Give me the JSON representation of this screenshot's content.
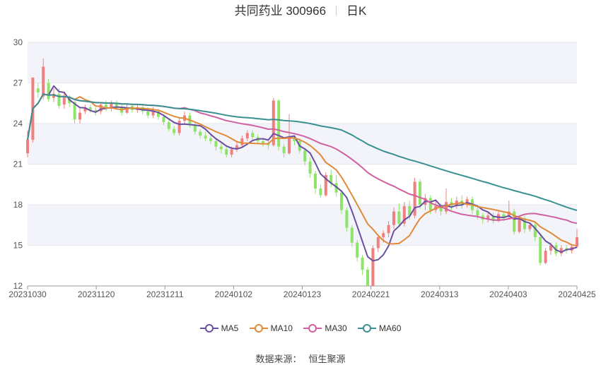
{
  "header": {
    "stock": "共同药业 300966",
    "period": "日K"
  },
  "source": {
    "label": "数据来源：",
    "value": "恒生聚源"
  },
  "colors": {
    "up": "#f08080",
    "down": "#8fe36a",
    "ma5": "#6a4fa0",
    "ma10": "#e08a3a",
    "ma30": "#d060a0",
    "ma60": "#3a9090",
    "band": "#f3f4fa",
    "grid": "#e4e6ee"
  },
  "chart_data": {
    "type": "candlestick",
    "ylim": [
      12,
      30
    ],
    "yticks": [
      "30",
      "27",
      "24",
      "21",
      "18",
      "15",
      "12"
    ],
    "xticks": [
      "20231030",
      "20231120",
      "20231211",
      "20240102",
      "20240123",
      "20240221",
      "20240313",
      "20240403",
      "20240425"
    ],
    "legend": [
      "MA5",
      "MA10",
      "MA30",
      "MA60"
    ],
    "candles": [
      [
        21.8,
        22.8,
        23.5,
        21.5
      ],
      [
        22.8,
        27.4,
        27.4,
        22.6
      ],
      [
        26.6,
        26.3,
        27.0,
        25.9
      ],
      [
        26.0,
        28.2,
        28.8,
        25.8
      ],
      [
        27.0,
        25.8,
        27.3,
        25.6
      ],
      [
        25.9,
        26.2,
        26.6,
        25.6
      ],
      [
        26.2,
        25.3,
        26.6,
        25.1
      ],
      [
        25.4,
        26.0,
        26.3,
        25.1
      ],
      [
        25.9,
        25.5,
        26.1,
        25.2
      ],
      [
        25.6,
        24.3,
        25.7,
        24.0
      ],
      [
        24.3,
        24.8,
        25.1,
        24.0
      ],
      [
        24.9,
        25.2,
        25.4,
        24.7
      ],
      [
        25.2,
        25.0,
        25.4,
        24.8
      ],
      [
        25.0,
        24.9,
        25.2,
        24.6
      ],
      [
        24.9,
        25.4,
        25.6,
        24.7
      ],
      [
        25.4,
        25.1,
        25.7,
        24.9
      ],
      [
        25.1,
        25.5,
        25.7,
        24.9
      ],
      [
        25.5,
        25.2,
        25.7,
        25.0
      ],
      [
        25.2,
        24.8,
        25.4,
        24.6
      ],
      [
        24.8,
        25.2,
        25.5,
        24.7
      ],
      [
        25.3,
        25.0,
        25.5,
        24.8
      ],
      [
        25.0,
        25.2,
        25.4,
        24.8
      ],
      [
        25.2,
        24.9,
        25.4,
        24.7
      ],
      [
        24.9,
        24.6,
        25.2,
        24.4
      ],
      [
        24.6,
        24.9,
        25.2,
        24.4
      ],
      [
        24.9,
        24.5,
        25.1,
        24.3
      ],
      [
        24.5,
        24.1,
        24.7,
        23.9
      ],
      [
        24.1,
        23.6,
        24.3,
        23.4
      ],
      [
        23.6,
        23.3,
        23.8,
        23.1
      ],
      [
        23.3,
        24.2,
        24.5,
        23.1
      ],
      [
        24.2,
        24.6,
        24.9,
        24.0
      ],
      [
        24.6,
        23.9,
        24.8,
        23.7
      ],
      [
        23.9,
        23.4,
        24.1,
        23.2
      ],
      [
        23.4,
        23.1,
        23.6,
        22.9
      ],
      [
        23.1,
        22.9,
        23.4,
        22.7
      ],
      [
        22.9,
        22.7,
        23.1,
        22.5
      ],
      [
        22.7,
        22.3,
        22.9,
        22.0
      ],
      [
        22.3,
        22.1,
        22.5,
        21.8
      ],
      [
        22.1,
        21.7,
        22.3,
        21.5
      ],
      [
        21.7,
        22.1,
        22.3,
        21.5
      ],
      [
        22.1,
        22.4,
        22.7,
        21.9
      ],
      [
        22.4,
        22.9,
        23.1,
        22.2
      ],
      [
        22.9,
        23.3,
        23.5,
        22.7
      ],
      [
        23.3,
        23.0,
        23.5,
        22.8
      ],
      [
        23.0,
        22.7,
        23.2,
        22.5
      ],
      [
        22.7,
        22.5,
        22.9,
        22.3
      ],
      [
        22.5,
        22.4,
        22.7,
        22.1
      ],
      [
        22.4,
        25.7,
        25.9,
        22.3
      ],
      [
        25.7,
        22.3,
        25.8,
        22.0
      ],
      [
        22.3,
        21.8,
        22.5,
        21.5
      ],
      [
        21.8,
        22.9,
        24.7,
        21.7
      ],
      [
        22.9,
        22.7,
        23.1,
        22.4
      ],
      [
        22.7,
        22.0,
        22.9,
        21.8
      ],
      [
        22.0,
        21.2,
        22.2,
        20.9
      ],
      [
        21.2,
        20.3,
        21.5,
        20.0
      ],
      [
        20.3,
        19.2,
        20.5,
        18.8
      ],
      [
        19.2,
        18.7,
        19.5,
        18.5
      ],
      [
        18.7,
        20.2,
        20.4,
        18.6
      ],
      [
        20.2,
        19.6,
        20.6,
        19.3
      ],
      [
        19.6,
        18.9,
        20.2,
        18.6
      ],
      [
        18.9,
        17.6,
        19.1,
        17.3
      ],
      [
        17.6,
        16.3,
        17.8,
        16.0
      ],
      [
        16.3,
        15.2,
        16.5,
        14.9
      ],
      [
        15.2,
        14.1,
        15.4,
        13.8
      ],
      [
        14.1,
        13.2,
        14.3,
        12.8
      ],
      [
        13.2,
        12.0,
        13.4,
        12.0
      ],
      [
        12.0,
        14.8,
        15.0,
        12.0
      ],
      [
        14.8,
        15.6,
        15.8,
        14.5
      ],
      [
        15.6,
        15.9,
        16.1,
        15.2
      ],
      [
        15.9,
        16.5,
        16.8,
        15.6
      ],
      [
        16.5,
        17.5,
        17.8,
        16.2
      ],
      [
        17.5,
        16.6,
        18.1,
        16.4
      ],
      [
        16.6,
        17.9,
        18.2,
        16.4
      ],
      [
        17.9,
        17.2,
        18.3,
        16.9
      ],
      [
        17.2,
        19.7,
        20.0,
        17.0
      ],
      [
        19.7,
        18.0,
        19.9,
        17.7
      ],
      [
        18.0,
        18.5,
        18.8,
        17.6
      ],
      [
        18.5,
        17.6,
        18.7,
        17.3
      ],
      [
        17.6,
        17.9,
        18.3,
        17.4
      ],
      [
        17.9,
        17.5,
        18.1,
        17.2
      ],
      [
        17.5,
        18.2,
        19.2,
        17.3
      ],
      [
        18.2,
        17.9,
        18.5,
        17.6
      ],
      [
        17.9,
        18.3,
        18.6,
        17.7
      ],
      [
        18.3,
        18.0,
        18.7,
        17.7
      ],
      [
        18.0,
        18.4,
        18.6,
        17.8
      ],
      [
        18.4,
        17.6,
        18.6,
        17.3
      ],
      [
        17.6,
        17.2,
        17.8,
        16.9
      ],
      [
        17.2,
        16.9,
        17.4,
        16.6
      ],
      [
        16.9,
        17.2,
        17.4,
        16.7
      ],
      [
        17.2,
        16.8,
        17.4,
        16.6
      ],
      [
        16.8,
        17.3,
        17.5,
        16.7
      ],
      [
        17.3,
        17.1,
        17.5,
        16.8
      ],
      [
        17.1,
        17.5,
        18.3,
        16.9
      ],
      [
        17.5,
        16.0,
        17.7,
        15.8
      ],
      [
        16.0,
        17.0,
        17.2,
        15.9
      ],
      [
        17.0,
        16.2,
        17.2,
        15.9
      ],
      [
        16.2,
        16.5,
        16.7,
        16.0
      ],
      [
        16.5,
        15.6,
        16.7,
        15.3
      ],
      [
        15.6,
        13.7,
        15.8,
        13.5
      ],
      [
        13.7,
        14.6,
        14.8,
        13.6
      ],
      [
        14.6,
        15.0,
        15.2,
        14.3
      ],
      [
        15.0,
        14.4,
        15.2,
        14.2
      ],
      [
        14.4,
        14.8,
        15.0,
        14.2
      ],
      [
        14.8,
        14.6,
        15.0,
        14.4
      ],
      [
        14.6,
        14.9,
        15.1,
        14.4
      ],
      [
        14.9,
        15.6,
        16.2,
        14.8
      ]
    ]
  }
}
